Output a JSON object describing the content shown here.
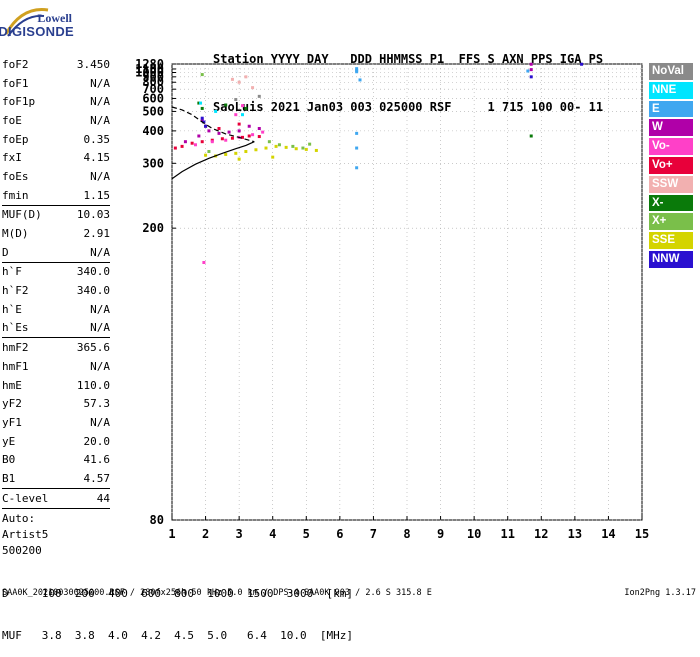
{
  "logo": {
    "line1": "Lowell",
    "line2": "DIGISONDE"
  },
  "header": {
    "line1": "Station YYYY DAY   DDD HHMMSS P1  FFS S AXN PPS IGA PS",
    "line2": "SaoLuis 2021 Jan03 003 025000 RSF     1 715 100 00- 11"
  },
  "params": [
    [
      {
        "name": "foF2",
        "value": "3.450"
      },
      {
        "name": "foF1",
        "value": "N/A"
      },
      {
        "name": "foF1p",
        "value": "N/A"
      },
      {
        "name": "foE",
        "value": "N/A"
      },
      {
        "name": "foEp",
        "value": "0.35"
      },
      {
        "name": "fxI",
        "value": "4.15"
      },
      {
        "name": "foEs",
        "value": "N/A"
      },
      {
        "name": "fmin",
        "value": "1.15"
      }
    ],
    [
      {
        "name": "MUF(D)",
        "value": "10.03"
      },
      {
        "name": "M(D)",
        "value": "2.91"
      },
      {
        "name": "D",
        "value": "N/A"
      }
    ],
    [
      {
        "name": "h`F",
        "value": "340.0"
      },
      {
        "name": "h`F2",
        "value": "340.0"
      },
      {
        "name": "h`E",
        "value": "N/A"
      },
      {
        "name": "h`Es",
        "value": "N/A"
      }
    ],
    [
      {
        "name": "hmF2",
        "value": "365.6"
      },
      {
        "name": "hmF1",
        "value": "N/A"
      },
      {
        "name": "hmE",
        "value": "110.0"
      },
      {
        "name": "yF2",
        "value": "57.3"
      },
      {
        "name": "yF1",
        "value": "N/A"
      },
      {
        "name": "yE",
        "value": "20.0"
      },
      {
        "name": "B0",
        "value": "41.6"
      },
      {
        "name": "B1",
        "value": "4.57"
      }
    ],
    [
      {
        "name": "C-level",
        "value": "44"
      }
    ]
  ],
  "auto": {
    "line1": "Auto:",
    "line2": "Artist5",
    "line3": "500200"
  },
  "legend": [
    {
      "label": "NoVal",
      "color": "#8a8a8a"
    },
    {
      "label": "NNE",
      "color": "#00e5ff"
    },
    {
      "label": "E",
      "color": "#3fa7f0"
    },
    {
      "label": "W",
      "color": "#b000a8"
    },
    {
      "label": "Vo-",
      "color": "#ff40c8"
    },
    {
      "label": "Vo+",
      "color": "#e8003a"
    },
    {
      "label": "SSW",
      "color": "#f2b0b0"
    },
    {
      "label": "X-",
      "color": "#0a7a0a"
    },
    {
      "label": "X+",
      "color": "#7abf4a"
    },
    {
      "label": "SSE",
      "color": "#d4d400"
    },
    {
      "label": "NNW",
      "color": "#2a10d0"
    }
  ],
  "bottom_table": {
    "d_line": "D     100  200  400  600  800  1000  1500  3000  [km]",
    "muf_line": "MUF   3.8  3.8  4.0  4.2  4.5  5.0   6.4  10.0  [MHz]"
  },
  "footer": {
    "left": "SAA0K_20210030025000.RSF / 280fx256h 50 kHz 5.0 km / DPS-4 SAA0K 903 / 2.6 S 315.8 E",
    "right": "Ion2Png 1.3.17"
  },
  "chart_data": {
    "type": "scatter",
    "title": "",
    "xlabel": "",
    "ylabel": "",
    "xlim": [
      1,
      15
    ],
    "ylim": [
      80,
      1280
    ],
    "y_scale": "reciprocal",
    "x_ticks": [
      1,
      2,
      3,
      4,
      5,
      6,
      7,
      8,
      9,
      10,
      11,
      12,
      13,
      14,
      15
    ],
    "y_ticks": [
      80,
      200,
      300,
      400,
      500,
      600,
      700,
      800,
      900,
      1000,
      1100,
      1280
    ],
    "grid": true,
    "series": [
      {
        "name": "SSE",
        "color": "#d4d400",
        "points": [
          [
            2.0,
            320
          ],
          [
            2.3,
            318
          ],
          [
            2.6,
            322
          ],
          [
            2.9,
            325
          ],
          [
            3.2,
            330
          ],
          [
            3.5,
            335
          ],
          [
            3.8,
            340
          ],
          [
            4.1,
            345
          ],
          [
            4.4,
            342
          ],
          [
            4.7,
            338
          ],
          [
            5.0,
            336
          ],
          [
            5.3,
            333
          ],
          [
            3.0,
            310
          ],
          [
            4.0,
            315
          ]
        ]
      },
      {
        "name": "Vo+",
        "color": "#e8003a",
        "points": [
          [
            1.1,
            340
          ],
          [
            1.3,
            345
          ],
          [
            1.6,
            355
          ],
          [
            1.9,
            360
          ],
          [
            2.2,
            365
          ],
          [
            2.5,
            370
          ],
          [
            2.8,
            372
          ],
          [
            3.1,
            375
          ],
          [
            3.3,
            380
          ],
          [
            3.6,
            378
          ],
          [
            2.0,
            420
          ],
          [
            2.4,
            410
          ],
          [
            3.0,
            430
          ]
        ]
      },
      {
        "name": "W",
        "color": "#b000a8",
        "points": [
          [
            1.4,
            360
          ],
          [
            1.8,
            380
          ],
          [
            2.1,
            400
          ],
          [
            2.4,
            390
          ],
          [
            2.7,
            395
          ],
          [
            3.0,
            400
          ],
          [
            3.3,
            420
          ],
          [
            3.6,
            410
          ],
          [
            1.9,
            450
          ],
          [
            11.7,
            1080
          ],
          [
            11.7,
            1270
          ]
        ]
      },
      {
        "name": "Vo-",
        "color": "#ff40c8",
        "points": [
          [
            1.7,
            350
          ],
          [
            2.2,
            360
          ],
          [
            2.6,
            365
          ],
          [
            3.0,
            375
          ],
          [
            3.4,
            385
          ],
          [
            3.7,
            395
          ],
          [
            2.9,
            480
          ],
          [
            3.1,
            540
          ],
          [
            1.95,
            170
          ]
        ]
      },
      {
        "name": "E",
        "color": "#3fa7f0",
        "points": [
          [
            6.5,
            1110
          ],
          [
            6.5,
            1060
          ],
          [
            6.5,
            1020
          ],
          [
            6.5,
            390
          ],
          [
            6.5,
            340
          ],
          [
            6.5,
            290
          ],
          [
            6.6,
            840
          ],
          [
            11.6,
            1040
          ]
        ]
      },
      {
        "name": "X+",
        "color": "#7abf4a",
        "points": [
          [
            4.2,
            350
          ],
          [
            4.6,
            345
          ],
          [
            4.9,
            340
          ],
          [
            5.1,
            352
          ],
          [
            3.9,
            360
          ],
          [
            2.1,
            330
          ],
          [
            1.9,
            950
          ]
        ]
      },
      {
        "name": "X-",
        "color": "#0a7a0a",
        "points": [
          [
            1.8,
            560
          ],
          [
            1.9,
            520
          ],
          [
            2.6,
            545
          ],
          [
            3.2,
            520
          ],
          [
            11.7,
            380
          ]
        ]
      },
      {
        "name": "NNW",
        "color": "#2a10d0",
        "points": [
          [
            1.9,
            460
          ],
          [
            1.95,
            440
          ],
          [
            2.0,
            420
          ],
          [
            13.2,
            1270
          ],
          [
            11.7,
            900
          ]
        ]
      },
      {
        "name": "NNE",
        "color": "#00e5ff",
        "points": [
          [
            1.85,
            560
          ],
          [
            2.3,
            500
          ],
          [
            3.1,
            480
          ]
        ]
      },
      {
        "name": "SSW",
        "color": "#f2b0b0",
        "points": [
          [
            2.8,
            850
          ],
          [
            3.0,
            800
          ],
          [
            3.4,
            720
          ],
          [
            3.2,
            900
          ]
        ]
      },
      {
        "name": "NoVal",
        "color": "#8a8a8a",
        "points": [
          [
            3.6,
            620
          ],
          [
            2.9,
            590
          ]
        ]
      }
    ],
    "trace_lines": [
      {
        "style": "solid",
        "points": [
          [
            1.0,
            268
          ],
          [
            1.3,
            282
          ],
          [
            1.7,
            298
          ],
          [
            2.1,
            312
          ],
          [
            2.5,
            325
          ],
          [
            2.9,
            338
          ],
          [
            3.2,
            348
          ],
          [
            3.45,
            360
          ]
        ]
      },
      {
        "style": "dashed",
        "points": [
          [
            1.0,
            530
          ],
          [
            1.3,
            510
          ],
          [
            1.6,
            480
          ],
          [
            1.9,
            440
          ],
          [
            2.2,
            410
          ],
          [
            2.6,
            388
          ],
          [
            3.0,
            375
          ],
          [
            3.45,
            360
          ]
        ]
      }
    ]
  }
}
